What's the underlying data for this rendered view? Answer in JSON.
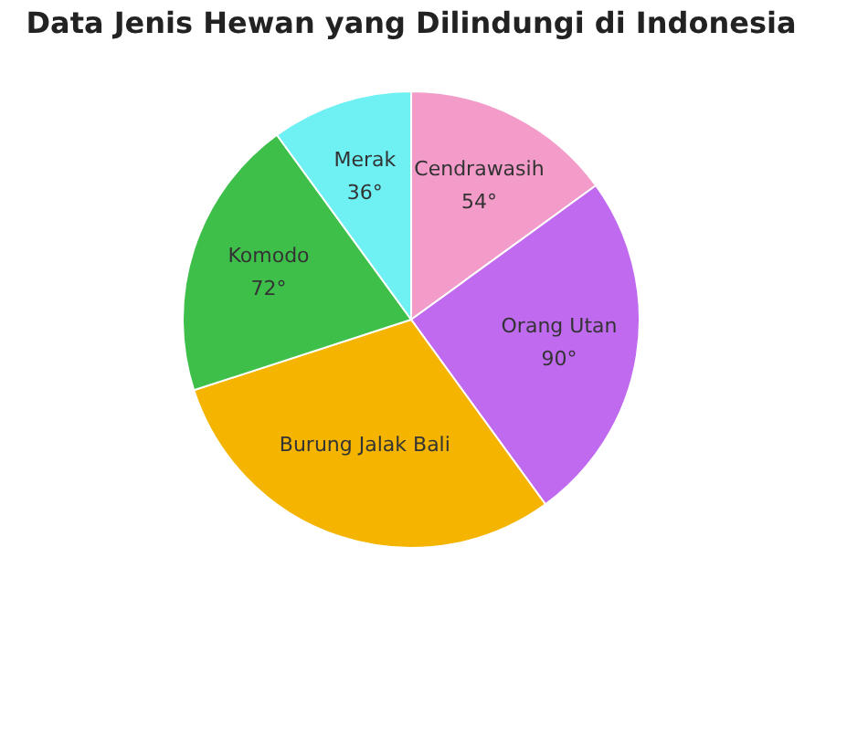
{
  "chart_data": {
    "type": "pie",
    "title": "Data Jenis Hewan yang Dilindungi di Indonesia",
    "categories": [
      "Cendrawasih",
      "Orang Utan",
      "Burung Jalak Bali",
      "Komodo",
      "Merak"
    ],
    "values": [
      54,
      90,
      108,
      72,
      36
    ],
    "value_labels": [
      "54°",
      "90°",
      null,
      "72°",
      "36°"
    ],
    "colors": [
      "#f39bc9",
      "#c06af0",
      "#f4b400",
      "#3dbf4a",
      "#6ff0f3"
    ],
    "legend": false
  }
}
